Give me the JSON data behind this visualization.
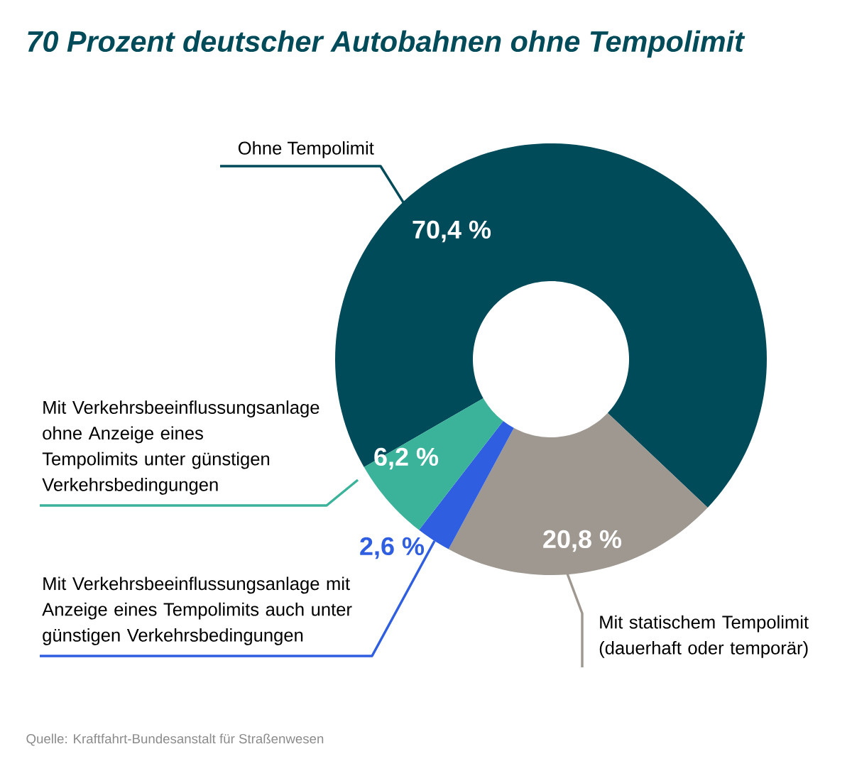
{
  "chart_data": {
    "type": "donut",
    "title": "70 Prozent deutscher Autobahnen ohne Tempolimit",
    "categories": [
      "Ohne Tempolimit",
      "Mit statischem Tempolimit (dauerhaft oder temporär)",
      "Mit Verkehrsbeeinflussungsanlage mit Anzeige eines Tempolimits auch unter günstigen Verkehrsbedingungen",
      "Mit Verkehrsbeeinflussungsanlage ohne Anzeige eines Tempolimits unter günstigen Verkehrsbedingungen"
    ],
    "values": [
      70.4,
      20.8,
      2.6,
      6.2
    ],
    "colors": [
      "#004b5a",
      "#9e9891",
      "#2f5ee0",
      "#3bb39a"
    ],
    "value_labels": [
      "70,4 %",
      "20,8 %",
      "2,6 %",
      "6,2 %"
    ],
    "annotations": [
      "Quelle: Kraftfahrt-Bundesanstalt für Straßenwesen"
    ]
  }
}
